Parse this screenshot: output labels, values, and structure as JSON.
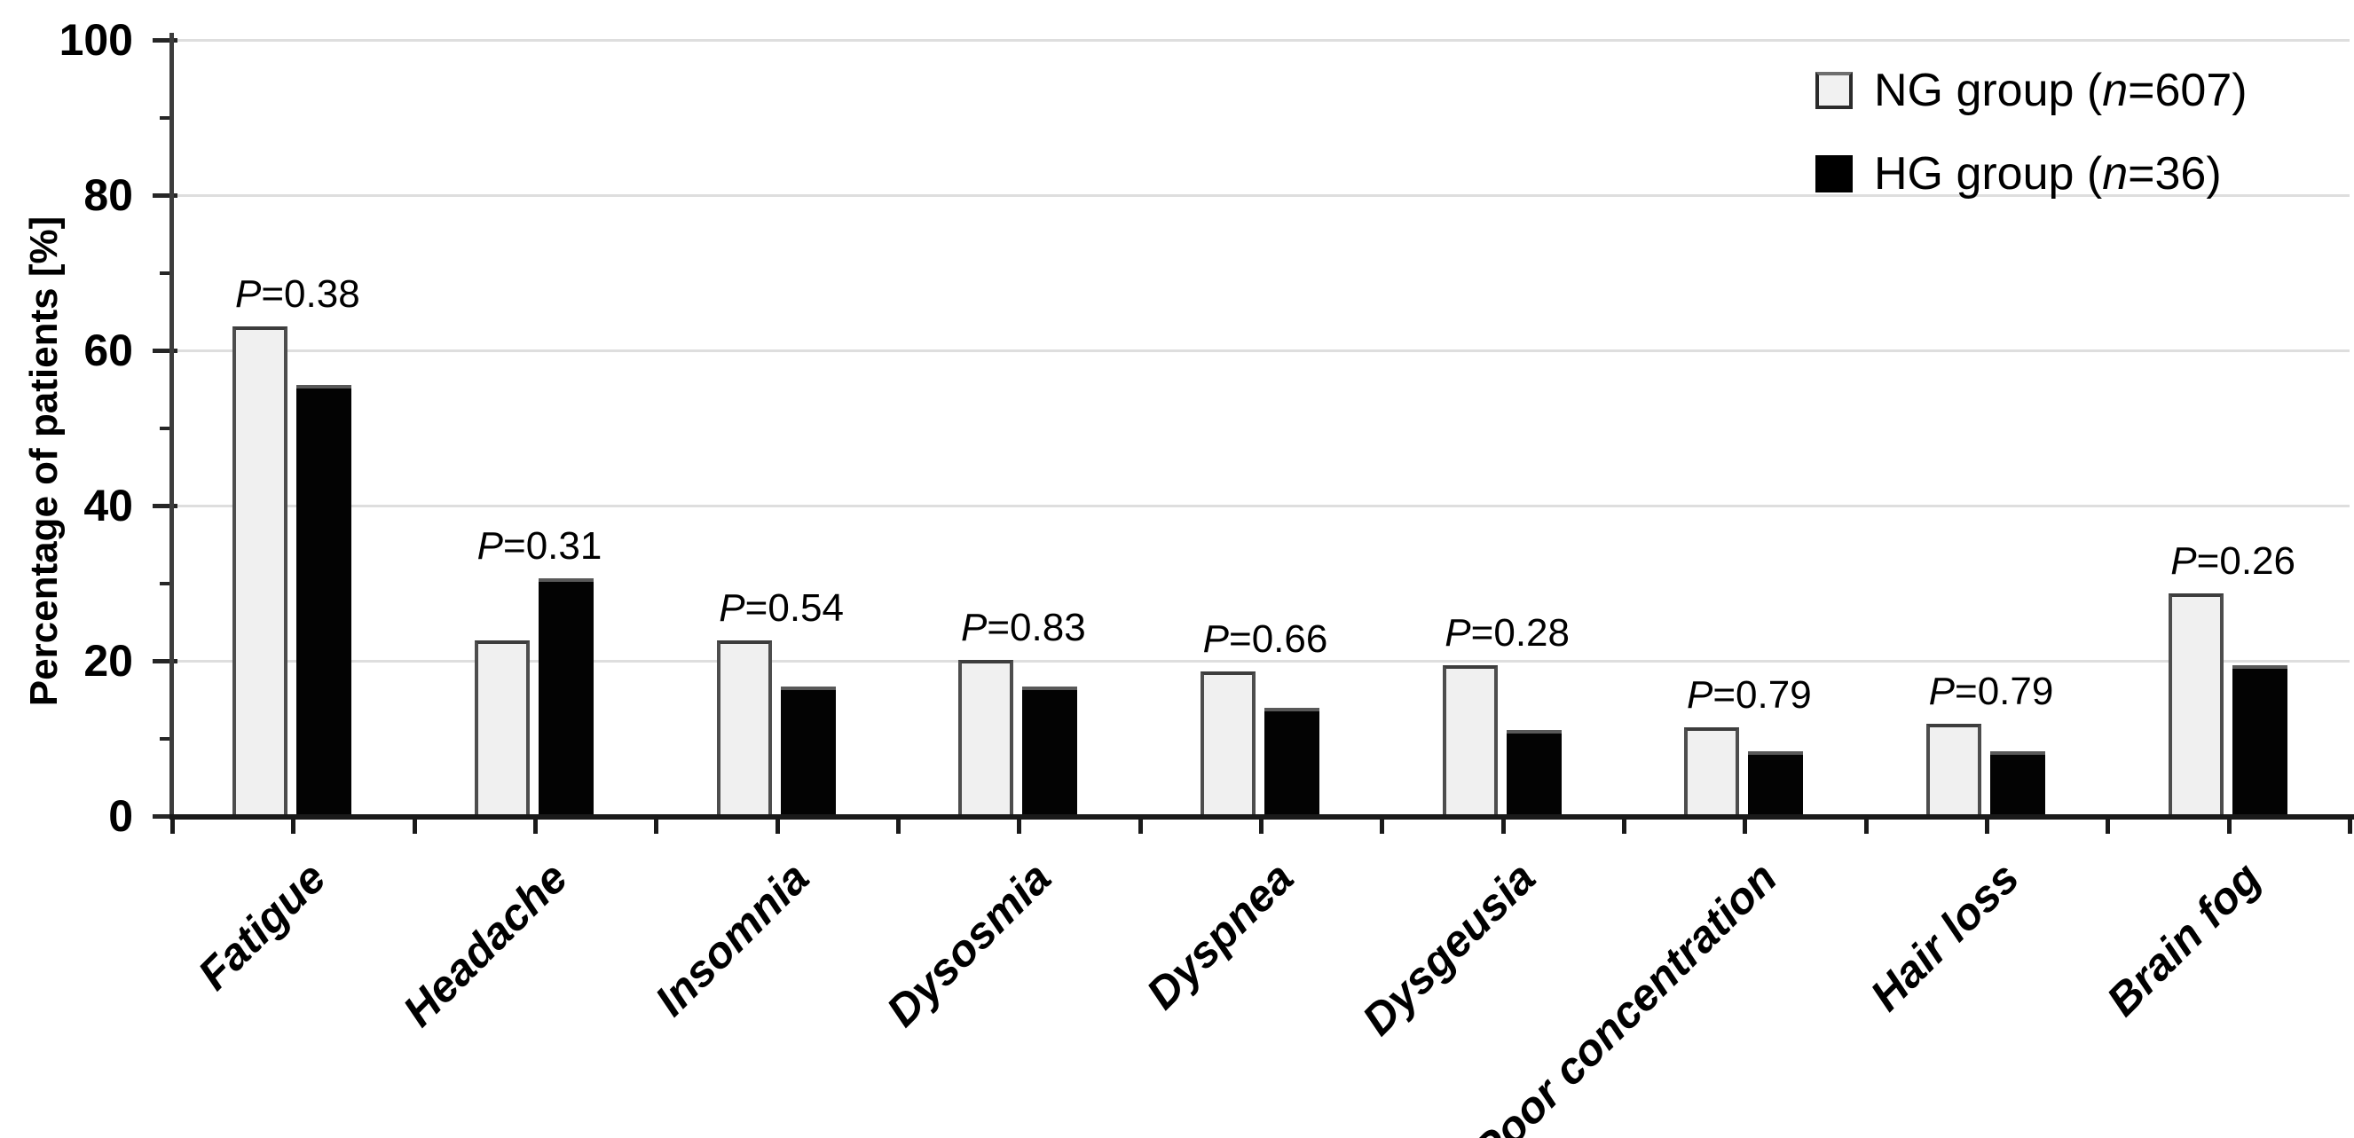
{
  "chart_data": {
    "type": "bar",
    "title": "",
    "xlabel": "",
    "ylabel": "Percentage of patients [%]",
    "ylim": [
      0,
      100
    ],
    "yticks_major": [
      0,
      20,
      40,
      60,
      80,
      100
    ],
    "yticks_minor": [
      10,
      30,
      50,
      70,
      90
    ],
    "grid": "horizontal-major-on",
    "legend_position": "top-right",
    "p_symbol": "P",
    "equals_sign": "=",
    "categories": [
      "Fatigue",
      "Headache",
      "Insomnia",
      "Dysosmia",
      "Dyspnea",
      "Dysgeusia",
      "Poor concentration",
      "Hair loss",
      "Brain fog"
    ],
    "series": [
      {
        "name": "NG group (n=607)",
        "values": [
          63.1,
          22.6,
          22.6,
          20.1,
          18.6,
          19.4,
          11.4,
          11.9,
          28.7
        ]
      },
      {
        "name": "HG group (n=36)",
        "values": [
          55.6,
          30.6,
          16.7,
          16.7,
          13.9,
          11.1,
          8.3,
          8.3,
          19.4
        ]
      }
    ],
    "p_values": [
      "0.38",
      "0.31",
      "0.54",
      "0.83",
      "0.66",
      "0.28",
      "0.79",
      "0.79",
      "0.26"
    ],
    "colors": {
      "ng_fill": "#f0f0f0",
      "ng_border": "#4d4d4d",
      "hg_fill": "#030303",
      "gridline": "#dedede",
      "axis": "#1a1a1a",
      "text": "#000000"
    }
  },
  "legend": {
    "items": [
      {
        "label": "NG group (n=607)",
        "prefix": "NG group (",
        "n_char": "n",
        "suffix": "=607)"
      },
      {
        "label": "HG group (n=36)",
        "prefix": "HG group (",
        "n_char": "n",
        "suffix": "=36)"
      }
    ]
  }
}
